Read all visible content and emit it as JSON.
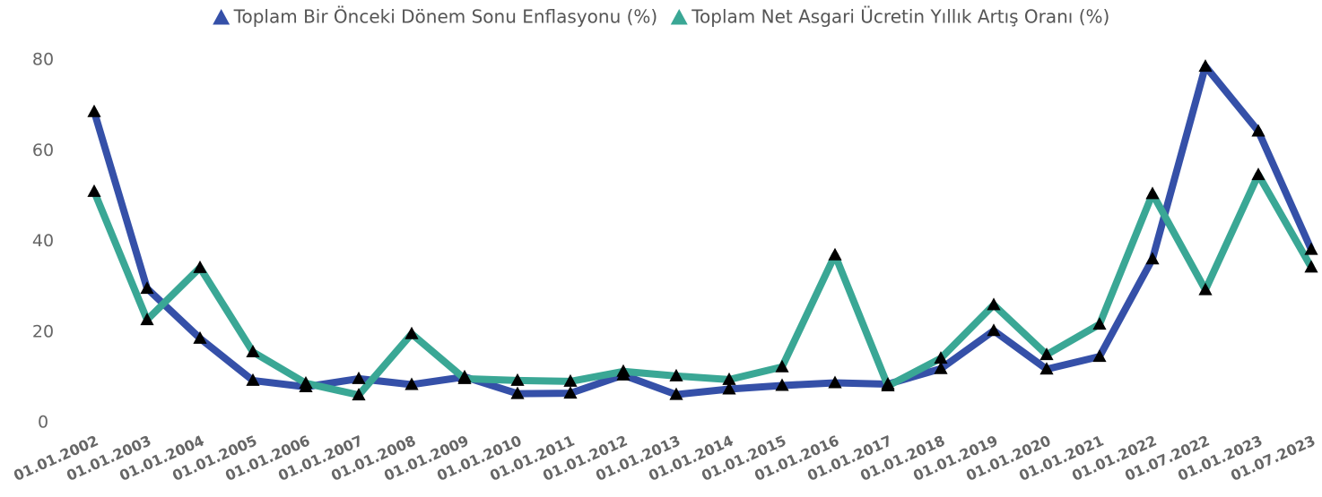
{
  "chart_data": {
    "type": "line",
    "categories": [
      "01.01.2002",
      "01.01.2003",
      "01.01.2004",
      "01.01.2005",
      "01.01.2006",
      "01.01.2007",
      "01.01.2008",
      "01.01.2009",
      "01.01.2010",
      "01.01.2011",
      "01.01.2012",
      "01.01.2013",
      "01.01.2014",
      "01.01.2015",
      "01.01.2016",
      "01.01.2017",
      "01.01.2018",
      "01.01.2019",
      "01.01.2020",
      "01.01.2021",
      "01.01.2022",
      "01.07.2022",
      "01.01.2023",
      "01.07.2023"
    ],
    "series": [
      {
        "name": "Toplam Bir Önceki Dönem Sonu Enflasyonu (%)",
        "color": "#3550a8",
        "values": [
          68.6,
          29.6,
          18.6,
          9.3,
          7.9,
          9.7,
          8.4,
          10.1,
          6.4,
          6.5,
          10.5,
          6.2,
          7.4,
          8.2,
          8.8,
          8.5,
          11.9,
          20.3,
          11.8,
          14.6,
          36.1,
          78.6,
          64.3,
          38.2
        ]
      },
      {
        "name": "Toplam Net Asgari Ücretin Yıllık Artış Oranı (%)",
        "color": "#3aa795",
        "values": [
          51,
          22.7,
          34.2,
          15.6,
          8.7,
          6.1,
          19.6,
          9.7,
          9.3,
          9.1,
          11.3,
          10.3,
          9.5,
          12.3,
          37,
          8.1,
          14.2,
          26,
          15,
          21.7,
          50.5,
          29.3,
          54.7,
          34.3
        ]
      }
    ],
    "ylim": [
      0,
      80
    ],
    "yticks": [
      0,
      20,
      40,
      60,
      80
    ],
    "grid": false,
    "legend": "top",
    "marker_color": "#000000"
  }
}
